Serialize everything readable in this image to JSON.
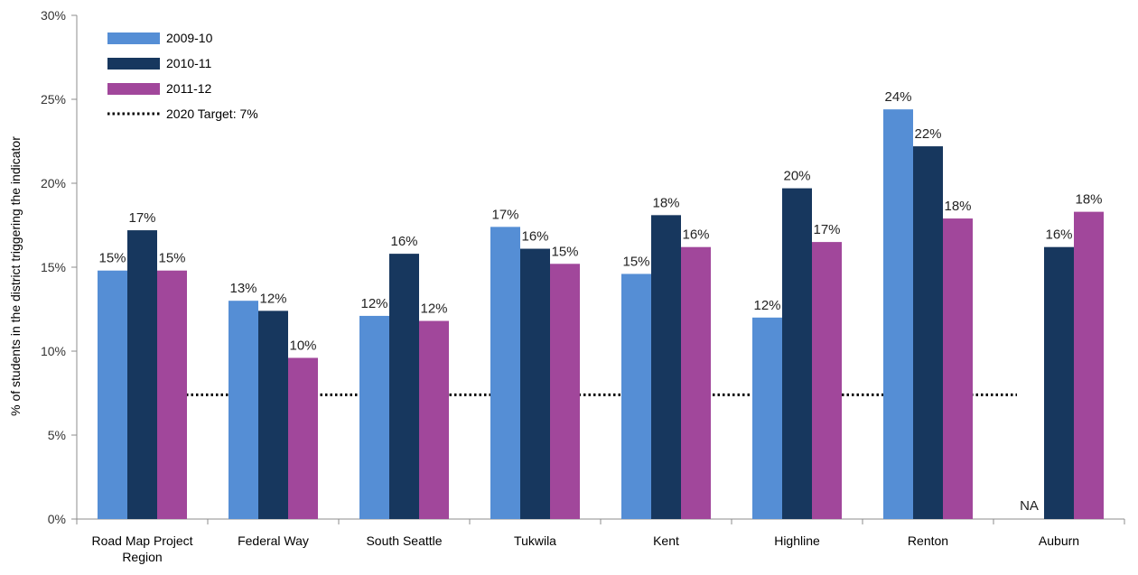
{
  "chart_data": {
    "type": "bar",
    "title": "",
    "xlabel": "",
    "ylabel": "% of students in the district triggering the indicator",
    "ylim": [
      0,
      30
    ],
    "yticks": [
      "0%",
      "5%",
      "10%",
      "15%",
      "20%",
      "25%",
      "30%"
    ],
    "ytick_values": [
      0,
      5,
      10,
      15,
      20,
      25,
      30
    ],
    "grid": false,
    "legend_position": "top-left",
    "categories": [
      [
        "Road Map Project",
        "Region"
      ],
      [
        "Federal Way"
      ],
      [
        "South Seattle"
      ],
      [
        "Tukwila"
      ],
      [
        "Kent"
      ],
      [
        "Highline"
      ],
      [
        "Renton"
      ],
      [
        "Auburn"
      ]
    ],
    "series": [
      {
        "name": "2009-10",
        "color": "#558ED5",
        "values": [
          14.8,
          13.0,
          12.1,
          17.4,
          14.6,
          12.0,
          24.4,
          null
        ],
        "labels": [
          "15%",
          "13%",
          "12%",
          "17%",
          "15%",
          "12%",
          "24%",
          "NA"
        ]
      },
      {
        "name": "2010-11",
        "color": "#17375E",
        "values": [
          17.2,
          12.4,
          15.8,
          16.1,
          18.1,
          19.7,
          22.2,
          16.2
        ],
        "labels": [
          "17%",
          "12%",
          "16%",
          "16%",
          "18%",
          "20%",
          "22%",
          "16%"
        ]
      },
      {
        "name": "2011-12",
        "color": "#A1479B",
        "values": [
          14.8,
          9.6,
          11.8,
          15.2,
          16.2,
          16.5,
          17.9,
          18.3
        ],
        "labels": [
          "15%",
          "10%",
          "12%",
          "15%",
          "16%",
          "17%",
          "18%",
          "18%"
        ]
      }
    ],
    "target_line": {
      "name": "2020 Target: 7%",
      "value": 7.4,
      "style": "dotted",
      "color": "#000000"
    }
  }
}
